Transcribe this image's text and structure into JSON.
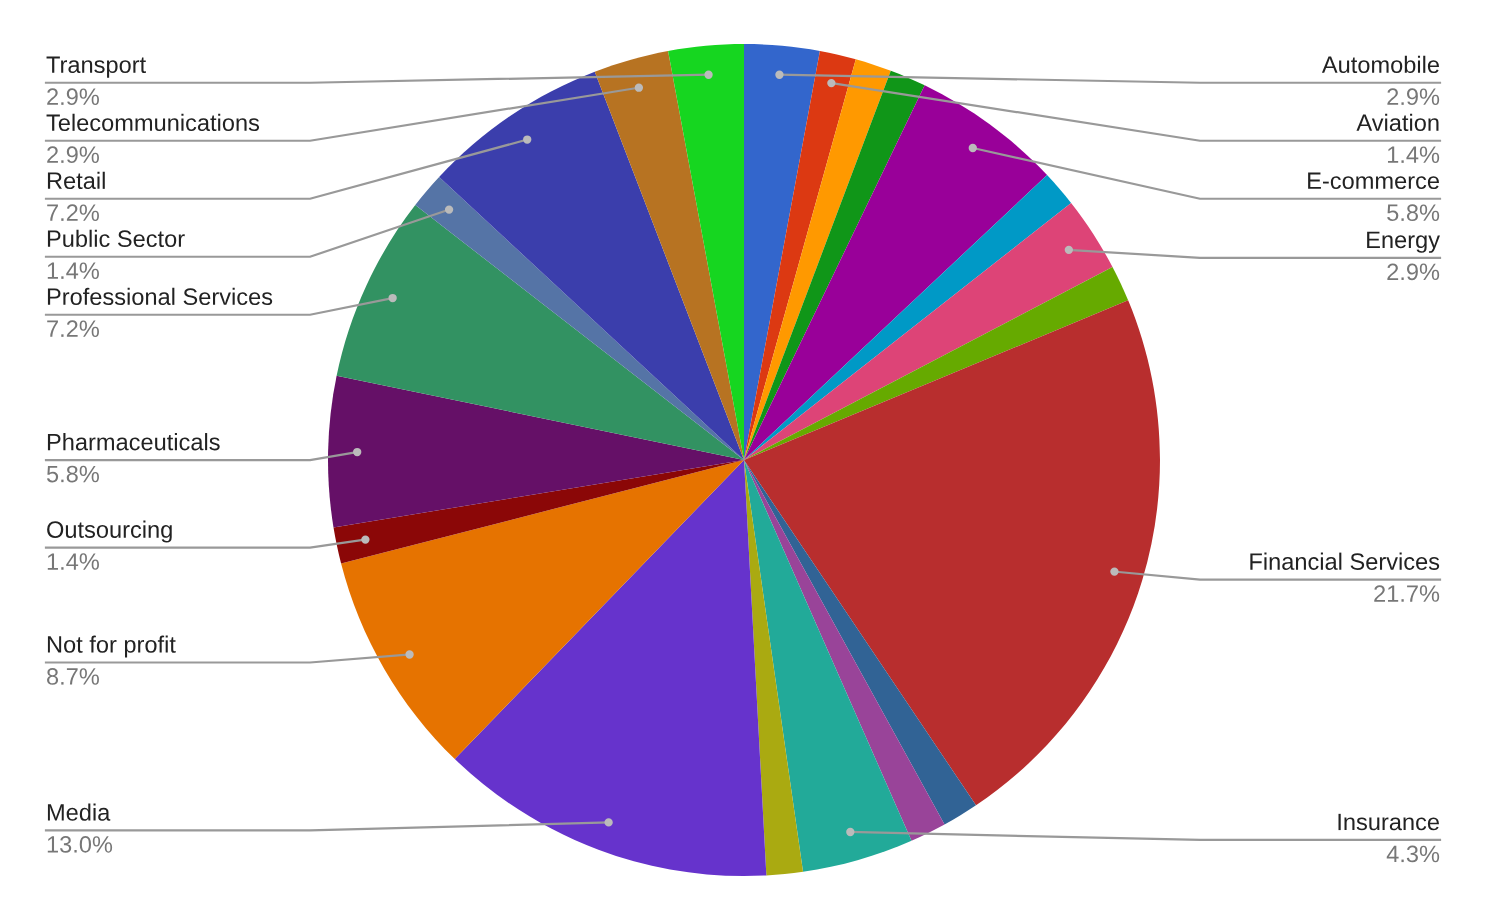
{
  "chart_data": {
    "type": "pie",
    "categories": [
      "Automobile",
      "Aviation",
      null,
      null,
      "E-commerce",
      null,
      "Energy",
      null,
      "Financial Services",
      null,
      null,
      "Insurance",
      null,
      "Media",
      "Not for profit",
      "Outsourcing",
      "Pharmaceuticals",
      "Professional Services",
      "Public Sector",
      "Retail",
      "Telecommunications",
      "Transport"
    ],
    "values": [
      2.9,
      1.4,
      1.4,
      1.4,
      5.8,
      1.4,
      2.9,
      1.4,
      21.7,
      1.4,
      1.4,
      4.3,
      1.4,
      13.0,
      8.7,
      1.4,
      5.8,
      7.2,
      1.4,
      7.2,
      2.9,
      2.9
    ],
    "value_labels": [
      "2.9%",
      "1.4%",
      null,
      null,
      "5.8%",
      null,
      "2.9%",
      null,
      "21.7%",
      null,
      null,
      "4.3%",
      null,
      "13.0%",
      "8.7%",
      "1.4%",
      "5.8%",
      "7.2%",
      "1.4%",
      "7.2%",
      "2.9%",
      "2.9%"
    ],
    "colors": [
      "#3366cc",
      "#dc3912",
      "#ff9900",
      "#109618",
      "#990099",
      "#0099c6",
      "#dd4477",
      "#66aa00",
      "#b82e2e",
      "#316395",
      "#994499",
      "#22aa99",
      "#aaaa11",
      "#6633cc",
      "#e67300",
      "#8b0707",
      "#651067",
      "#329262",
      "#5574a6",
      "#3b3eac",
      "#b77322",
      "#16d620"
    ],
    "legend": false
  }
}
